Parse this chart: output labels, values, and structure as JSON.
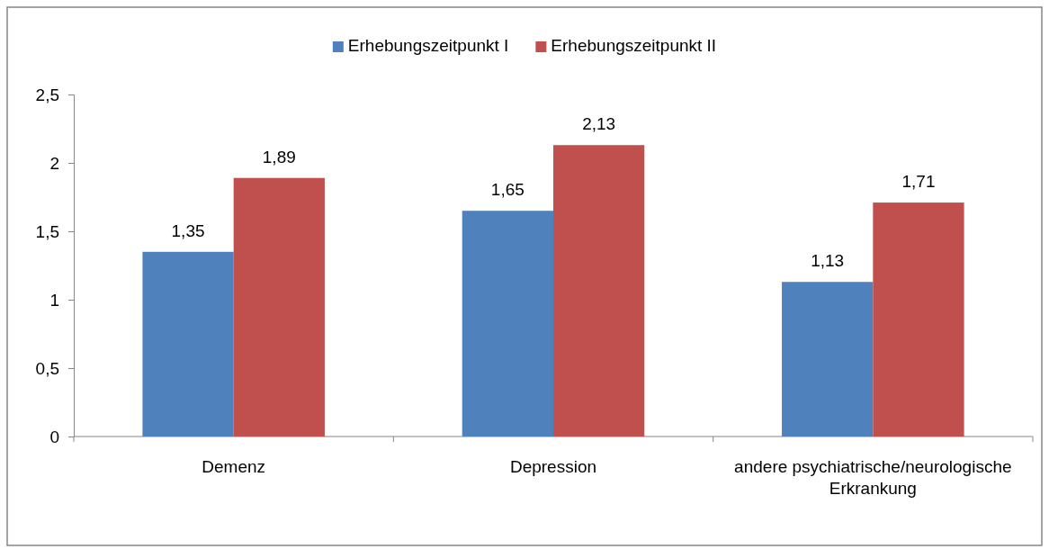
{
  "chart_data": {
    "type": "bar",
    "categories": [
      "Demenz",
      "Depression",
      "andere psychiatrische/neurologische Erkrankung"
    ],
    "series": [
      {
        "name": "Erhebungszeitpunkt I",
        "color": "#4f81bd",
        "values": [
          1.35,
          1.65,
          1.13
        ],
        "value_labels": [
          "1,35",
          "1,65",
          "1,13"
        ]
      },
      {
        "name": "Erhebungszeitpunkt II",
        "color": "#c0504d",
        "values": [
          1.89,
          2.13,
          1.71
        ],
        "value_labels": [
          "1,89",
          "2,13",
          "1,71"
        ]
      }
    ],
    "ylim": [
      0,
      2.5
    ],
    "yticks": [
      0,
      {
        "value": 0.5,
        "label": "0,5"
      },
      1,
      {
        "value": 1.5,
        "label": "1,5"
      },
      2,
      {
        "value": 2.5,
        "label": "2,5"
      }
    ],
    "grid": false,
    "legend": "top"
  }
}
